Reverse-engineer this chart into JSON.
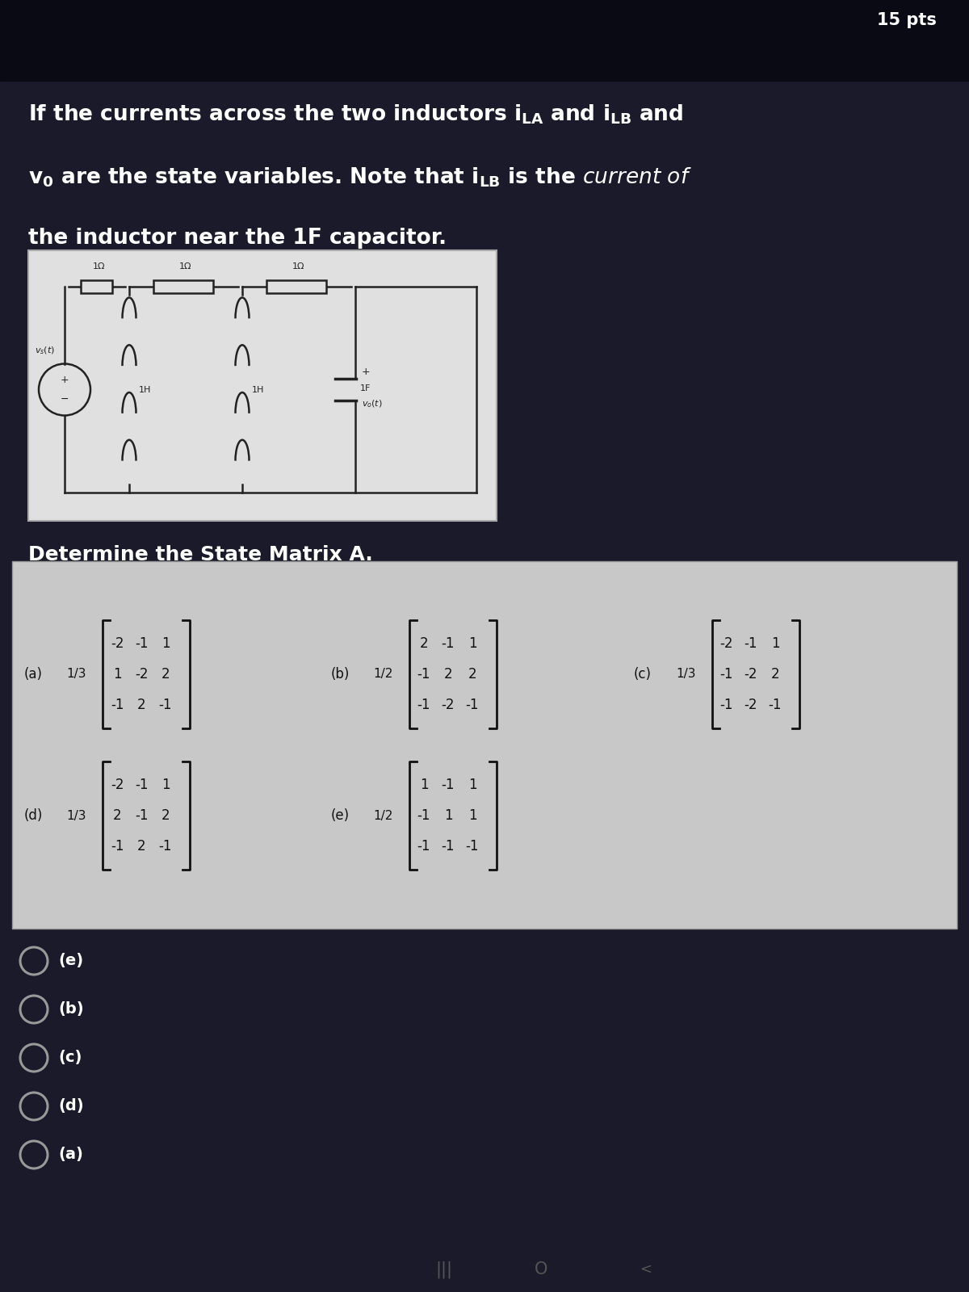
{
  "bg_dark": "#1a1a2a",
  "bg_top": "#0a0a14",
  "bg_circuit": "#e8e8e8",
  "bg_matrix": "#d8d8d8",
  "text_white": "#ffffff",
  "text_dark": "#111111",
  "text_gray": "#888888",
  "pts_text": "15 pts",
  "determine_text": "Determine the State Matrix A.",
  "matrix_a_label": "(a)",
  "matrix_a_scalar": "1/3",
  "matrix_a": [
    [
      -2,
      -1,
      1
    ],
    [
      1,
      -2,
      2
    ],
    [
      -1,
      2,
      -1
    ]
  ],
  "matrix_b_label": "(b)",
  "matrix_b_scalar": "1/2",
  "matrix_b": [
    [
      2,
      -1,
      1
    ],
    [
      -1,
      2,
      2
    ],
    [
      -1,
      -2,
      -1
    ]
  ],
  "matrix_c_label": "(c)",
  "matrix_c_scalar": "1/3",
  "matrix_c": [
    [
      -2,
      -1,
      1
    ],
    [
      -1,
      -2,
      2
    ],
    [
      -1,
      -2,
      -1
    ]
  ],
  "matrix_d_label": "(d)",
  "matrix_d_scalar": "1/3",
  "matrix_d": [
    [
      -2,
      -1,
      1
    ],
    [
      2,
      -1,
      2
    ],
    [
      -1,
      2,
      -1
    ]
  ],
  "matrix_e_label": "(e)",
  "matrix_e_scalar": "1/2",
  "matrix_e": [
    [
      1,
      -1,
      1
    ],
    [
      -1,
      1,
      1
    ],
    [
      -1,
      -1,
      -1
    ]
  ],
  "radio_options": [
    "(e)",
    "(b)",
    "(c)",
    "(d)",
    "(a)"
  ]
}
